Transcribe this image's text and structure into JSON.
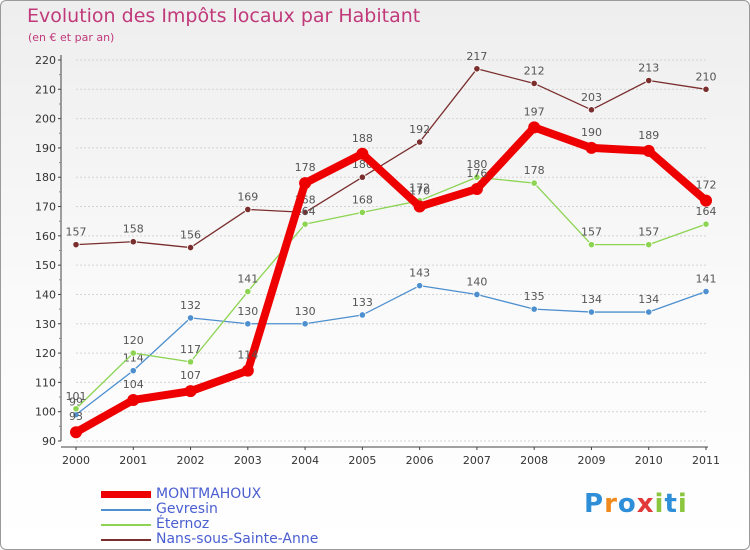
{
  "chart_data": {
    "type": "line",
    "title": "Evolution des Impôts locaux par Habitant",
    "subtitle": "(en € et par an)",
    "x": [
      "2000",
      "2001",
      "2002",
      "2003",
      "2004",
      "2005",
      "2006",
      "2007",
      "2008",
      "2009",
      "2010",
      "2011"
    ],
    "ylim": [
      90,
      220
    ],
    "yticks": [
      90,
      100,
      110,
      120,
      130,
      140,
      150,
      160,
      170,
      180,
      190,
      200,
      210,
      220
    ],
    "series": [
      {
        "name": "Nans-sous-Sainte-Anne",
        "color": "#7a2e2e",
        "values": [
          157,
          158,
          156,
          169,
          168,
          180,
          192,
          217,
          212,
          203,
          213,
          210
        ]
      },
      {
        "name": "Gevresin",
        "color": "#4d8fcf",
        "values": [
          99,
          114,
          132,
          130,
          130,
          133,
          143,
          140,
          135,
          134,
          134,
          141
        ]
      },
      {
        "name": "Éternoz",
        "color": "#8cd452",
        "values": [
          101,
          120,
          117,
          141,
          164,
          168,
          172,
          180,
          178,
          157,
          157,
          164
        ]
      },
      {
        "name": "MONTMAHOUX",
        "color": "#ee0000",
        "values": [
          93,
          104,
          107,
          114,
          178,
          188,
          170,
          176,
          197,
          190,
          189,
          172
        ]
      }
    ],
    "legend": [
      "MONTMAHOUX",
      "Gevresin",
      "Éternoz",
      "Nans-sous-Sainte-Anne"
    ]
  },
  "logo": {
    "text": "Proxiti",
    "letters": [
      "P",
      "r",
      "o",
      "x",
      "i",
      "t",
      "i"
    ],
    "colors": [
      "#2e8fd8",
      "#f08a1c",
      "#2e8fd8",
      "#e23a3a",
      "#8cc63e",
      "#2e8fd8",
      "#8cc63e"
    ]
  }
}
